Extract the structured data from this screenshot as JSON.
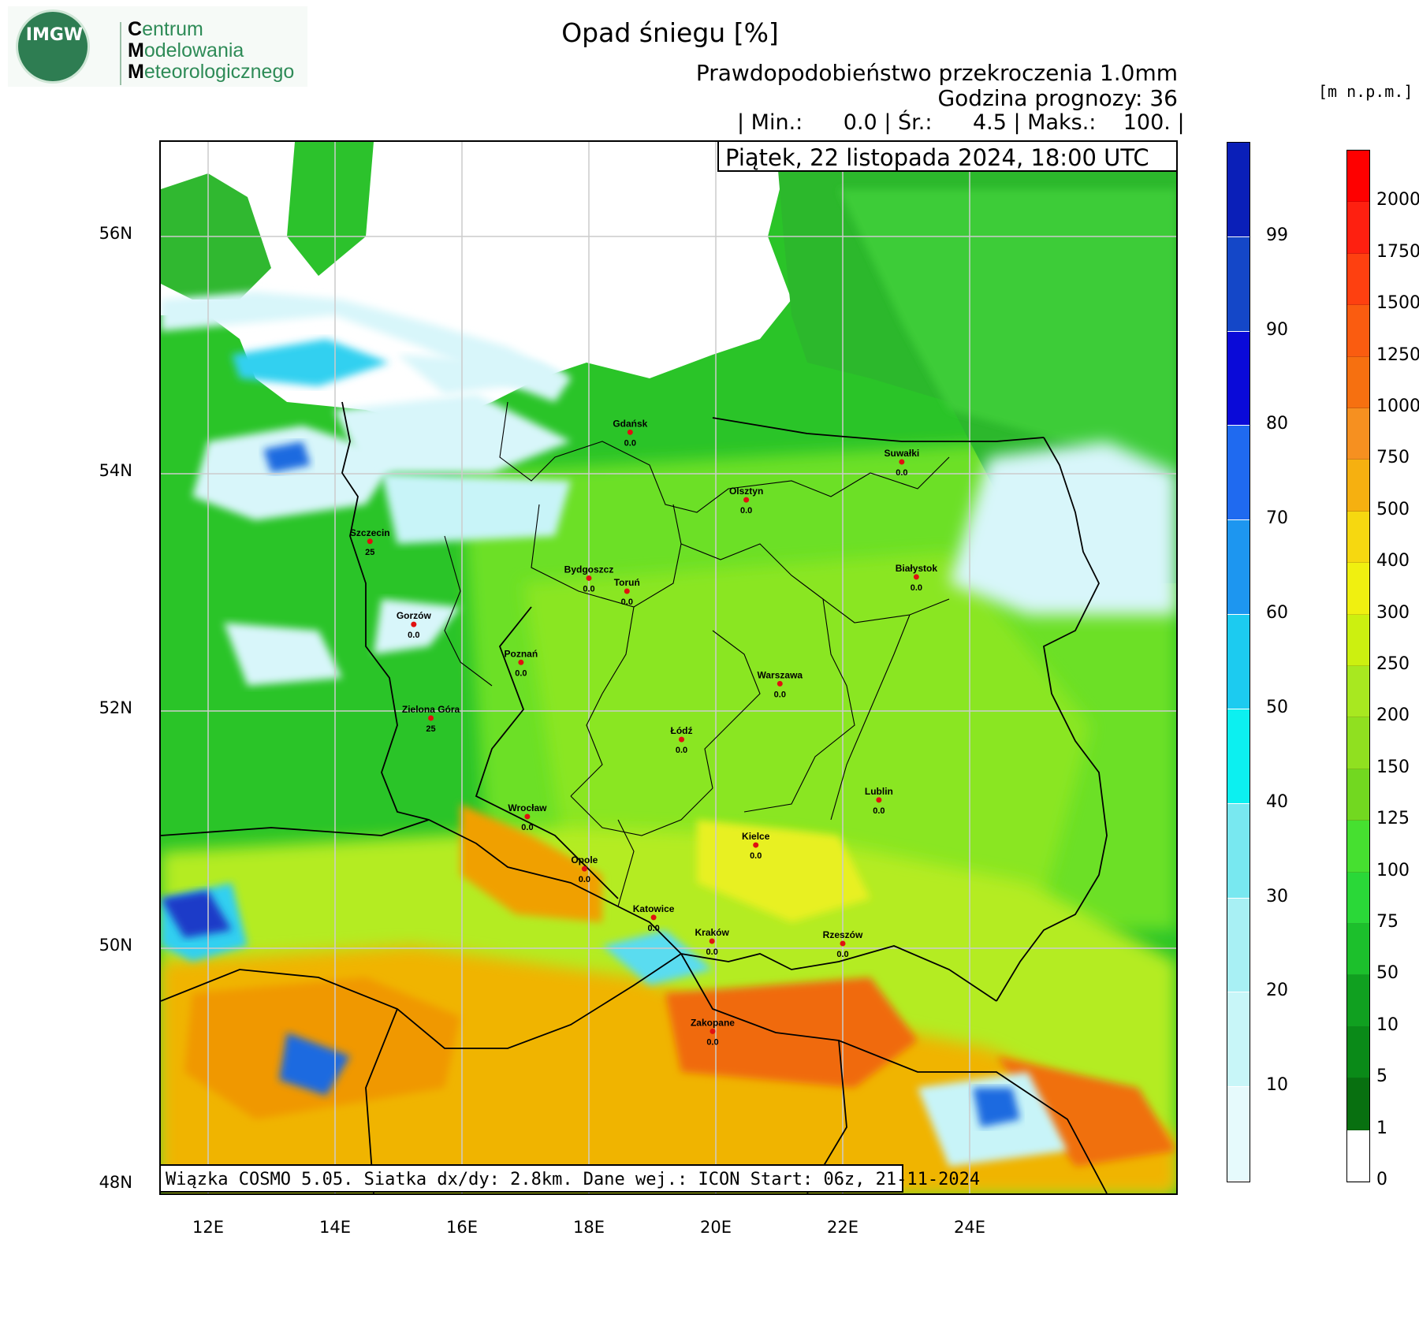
{
  "header": {
    "org": {
      "logo_letters": "IMGW",
      "line1_initial": "C",
      "line1_rest": "entrum",
      "line2_initial": "M",
      "line2_rest": "odelowania",
      "line3_initial": "M",
      "line3_rest": "eteorologicznego"
    },
    "title": "Opad śniegu [%]",
    "subtitle": "Prawdopodobieństwo przekroczenia 1.0mm",
    "forecast_hour": "Godzina prognozy: 36",
    "stats": {
      "min_label": "| Min.:",
      "min": "0.0",
      "mean_label": "| Śr.:",
      "mean": "4.5",
      "max_label": "| Maks.:",
      "max": "100.",
      "end": "|"
    },
    "date": "Piątek, 22 listopada 2024, 18:00 UTC"
  },
  "map": {
    "lat_ticks": [
      "56N",
      "54N",
      "52N",
      "50N",
      "48N"
    ],
    "lon_ticks": [
      "12E",
      "14E",
      "16E",
      "18E",
      "20E",
      "22E",
      "24E"
    ],
    "footer": "Wiązka COSMO 5.05. Siatka dx/dy: 2.8km. Dane wej.: ICON Start: 06z, 21-11-2024",
    "cities": [
      {
        "name": "Gdańsk",
        "value": "0.0",
        "lon": 18.65,
        "lat": 54.35
      },
      {
        "name": "Suwałki",
        "value": "0.0",
        "lon": 22.93,
        "lat": 54.1
      },
      {
        "name": "Olsztyn",
        "value": "0.0",
        "lon": 20.48,
        "lat": 53.78
      },
      {
        "name": "Szczecin",
        "value": "25",
        "lon": 14.55,
        "lat": 53.43
      },
      {
        "name": "Bydgoszcz",
        "value": "0.0",
        "lon": 18.0,
        "lat": 53.12
      },
      {
        "name": "Toruń",
        "value": "0.0",
        "lon": 18.6,
        "lat": 53.01
      },
      {
        "name": "Białystok",
        "value": "0.0",
        "lon": 23.16,
        "lat": 53.13
      },
      {
        "name": "Gorzów",
        "value": "0.0",
        "lon": 15.24,
        "lat": 52.73
      },
      {
        "name": "Poznań",
        "value": "0.0",
        "lon": 16.93,
        "lat": 52.41
      },
      {
        "name": "Warszawa",
        "value": "0.0",
        "lon": 21.01,
        "lat": 52.23
      },
      {
        "name": "Zielona Góra",
        "value": "25",
        "lon": 15.51,
        "lat": 51.94
      },
      {
        "name": "Łódź",
        "value": "0.0",
        "lon": 19.46,
        "lat": 51.76
      },
      {
        "name": "Lublin",
        "value": "0.0",
        "lon": 22.57,
        "lat": 51.25
      },
      {
        "name": "Wrocław",
        "value": "0.0",
        "lon": 17.03,
        "lat": 51.11
      },
      {
        "name": "Kielce",
        "value": "0.0",
        "lon": 20.63,
        "lat": 50.87
      },
      {
        "name": "Opole",
        "value": "0.0",
        "lon": 17.93,
        "lat": 50.67
      },
      {
        "name": "Katowice",
        "value": "0.0",
        "lon": 19.02,
        "lat": 50.26
      },
      {
        "name": "Kraków",
        "value": "0.0",
        "lon": 19.94,
        "lat": 50.06
      },
      {
        "name": "Rzeszów",
        "value": "0.0",
        "lon": 22.0,
        "lat": 50.04
      },
      {
        "name": "Zakopane",
        "value": "0.0",
        "lon": 19.95,
        "lat": 49.3
      }
    ],
    "colors": {
      "sea": "#ffffff",
      "lowland": "#22c020",
      "lowland_light": "#7ce828",
      "upland": "#c8f020",
      "highland": "#f0b000",
      "mountain": "#f06010",
      "snow_low": "#d8f6fa",
      "snow_mid": "#30d0f0",
      "snow_high": "#1040d0"
    }
  },
  "colorbar_snow": {
    "labels": [
      "99",
      "90",
      "80",
      "70",
      "60",
      "50",
      "40",
      "30",
      "20",
      "10"
    ],
    "colors": [
      "#0a1fb8",
      "#1447c8",
      "#0a0ad8",
      "#1f6af0",
      "#1d96f0",
      "#1ccbf0",
      "#0cf0f0",
      "#78e8f0",
      "#a8f0f4",
      "#c8f6f8",
      "#e6fafc"
    ]
  },
  "colorbar_height": {
    "unit": "[m n.p.m.]",
    "labels": [
      "2000",
      "1750",
      "1500",
      "1250",
      "1000",
      "750",
      "500",
      "400",
      "300",
      "250",
      "200",
      "150",
      "125",
      "100",
      "75",
      "50",
      "10",
      "5",
      "1",
      "0"
    ],
    "colors": [
      "#fe0000",
      "#fe2010",
      "#fe4010",
      "#fa5c10",
      "#f67010",
      "#f69020",
      "#f6b010",
      "#f6d810",
      "#f0f010",
      "#ccf010",
      "#a8e820",
      "#90e020",
      "#72d820",
      "#46e030",
      "#2ad838",
      "#1cc02c",
      "#10a020",
      "#0a8a18",
      "#087010",
      "#ffffff"
    ]
  }
}
